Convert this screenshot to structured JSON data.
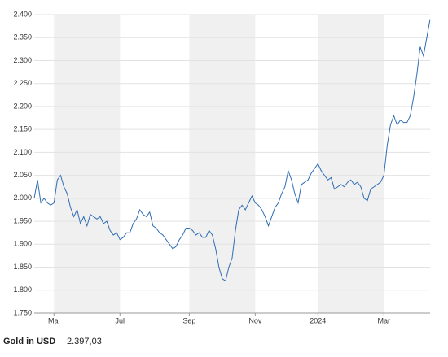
{
  "chart_data": {
    "type": "line",
    "title": "Gold in USD",
    "annotation": "2.397,03",
    "categories": [
      null,
      null,
      null,
      null,
      null,
      null,
      "Mai",
      null,
      null,
      null,
      null,
      null,
      null,
      null,
      null,
      null,
      null,
      null,
      null,
      null,
      null,
      null,
      null,
      null,
      null,
      null,
      "Jul",
      null,
      null,
      null,
      null,
      null,
      null,
      null,
      null,
      null,
      null,
      null,
      null,
      null,
      null,
      null,
      null,
      null,
      null,
      null,
      null,
      "Sep",
      null,
      null,
      null,
      null,
      null,
      null,
      null,
      null,
      null,
      null,
      null,
      null,
      null,
      null,
      null,
      null,
      null,
      null,
      null,
      "Nov",
      null,
      null,
      null,
      null,
      null,
      null,
      null,
      null,
      null,
      null,
      null,
      null,
      null,
      null,
      null,
      null,
      null,
      null,
      "2024",
      null,
      null,
      null,
      null,
      null,
      null,
      null,
      null,
      null,
      null,
      null,
      null,
      null,
      null,
      null,
      null,
      null,
      null,
      null,
      "Mar",
      null,
      null,
      null,
      null,
      null,
      null,
      null,
      null,
      null,
      null,
      null,
      null,
      null,
      null
    ],
    "series": [
      {
        "name": "Gold in USD",
        "color": "#2f6db5",
        "values": [
          2000,
          2040,
          1990,
          2000,
          1990,
          1985,
          1990,
          2040,
          2050,
          2025,
          2010,
          1980,
          1960,
          1975,
          1945,
          1960,
          1940,
          1965,
          1960,
          1955,
          1960,
          1945,
          1950,
          1930,
          1920,
          1925,
          1910,
          1915,
          1925,
          1925,
          1945,
          1955,
          1975,
          1965,
          1960,
          1970,
          1940,
          1935,
          1925,
          1920,
          1910,
          1900,
          1890,
          1895,
          1910,
          1920,
          1935,
          1935,
          1930,
          1920,
          1925,
          1915,
          1915,
          1930,
          1920,
          1890,
          1850,
          1825,
          1820,
          1850,
          1870,
          1930,
          1975,
          1985,
          1975,
          1990,
          2005,
          1990,
          1985,
          1975,
          1960,
          1940,
          1960,
          1980,
          1990,
          2010,
          2025,
          2060,
          2040,
          2010,
          1990,
          2030,
          2035,
          2040,
          2055,
          2065,
          2075,
          2060,
          2050,
          2040,
          2045,
          2020,
          2025,
          2030,
          2025,
          2035,
          2040,
          2030,
          2035,
          2025,
          2000,
          1995,
          2020,
          2025,
          2030,
          2035,
          2050,
          2115,
          2160,
          2180,
          2160,
          2170,
          2165,
          2165,
          2180,
          2220,
          2270,
          2330,
          2310,
          2350,
          2390
        ]
      }
    ],
    "ylim": [
      1750,
      2400
    ],
    "yticks": [
      {
        "value": 1750,
        "label": "1.750"
      },
      {
        "value": 1800,
        "label": "1.800"
      },
      {
        "value": 1850,
        "label": "1.850"
      },
      {
        "value": 1900,
        "label": "1.900"
      },
      {
        "value": 1950,
        "label": "1.950"
      },
      {
        "value": 2000,
        "label": "2.000"
      },
      {
        "value": 2050,
        "label": "2.050"
      },
      {
        "value": 2100,
        "label": "2.100"
      },
      {
        "value": 2150,
        "label": "2.150"
      },
      {
        "value": 2200,
        "label": "2.200"
      },
      {
        "value": 2250,
        "label": "2.250"
      },
      {
        "value": 2300,
        "label": "2.300"
      },
      {
        "value": 2350,
        "label": "2.350"
      },
      {
        "value": 2400,
        "label": "2.400"
      }
    ],
    "grid": true
  }
}
